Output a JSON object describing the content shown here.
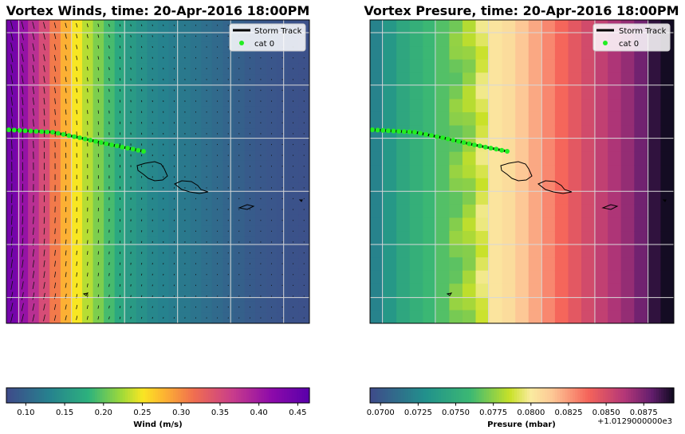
{
  "chart_data": [
    {
      "type": "heatmap",
      "title": "Vortex Winds, time: 20-Apr-2016 18:00PM",
      "colormap": "plasma-like",
      "colorbar": {
        "label": "Wind (m/s)",
        "range": [
          0.075,
          0.465
        ],
        "ticks": [
          0.1,
          0.15,
          0.2,
          0.25,
          0.3,
          0.35,
          0.4,
          0.45
        ],
        "tick_labels": [
          "0.10",
          "0.15",
          "0.20",
          "0.25",
          "0.30",
          "0.35",
          "0.40",
          "0.45"
        ]
      },
      "legend": {
        "placement": "top-right",
        "entries": [
          "Storm Track",
          "cat 0"
        ]
      },
      "grid": true,
      "field_profile_by_column": [
        0.44,
        0.41,
        0.38,
        0.35,
        0.31,
        0.28,
        0.25,
        0.23,
        0.21,
        0.19,
        0.17,
        0.155,
        0.145,
        0.135,
        0.13,
        0.125,
        0.12,
        0.115,
        0.11,
        0.105,
        0.1,
        0.095,
        0.09,
        0.087,
        0.085,
        0.083,
        0.081,
        0.08
      ],
      "wind_vectors": true
    },
    {
      "type": "heatmap",
      "title": "Vortex Presure, time: 20-Apr-2016 18:00PM",
      "colormap": "magma-like",
      "colorbar": {
        "label": "Presure (mbar)",
        "offset_text": "+1.0129000000e3",
        "range": [
          0.0693,
          0.0895
        ],
        "ticks": [
          0.07,
          0.0725,
          0.075,
          0.0775,
          0.08,
          0.0825,
          0.085,
          0.0875
        ],
        "tick_labels": [
          "0.0700",
          "0.0725",
          "0.0750",
          "0.0775",
          "0.0800",
          "0.0825",
          "0.0850",
          "0.0875"
        ]
      },
      "legend": {
        "placement": "top-right",
        "entries": [
          "Storm Track",
          "cat 0"
        ]
      },
      "grid": true,
      "field_profile_by_column": [
        0.0722,
        0.0735,
        0.0745,
        0.0752,
        0.0758,
        0.0764,
        0.0771,
        0.0778,
        0.0792,
        0.0803,
        0.0806,
        0.0814,
        0.0822,
        0.083,
        0.0838,
        0.0845,
        0.0852,
        0.0858,
        0.0864,
        0.087,
        0.0878,
        0.089,
        0.0896
      ]
    }
  ],
  "legend": {
    "track_label": "Storm Track",
    "point_label": "cat 0"
  },
  "titles": {
    "left": "Vortex Winds, time: 20-Apr-2016 18:00PM",
    "right": "Vortex Presure, time: 20-Apr-2016 18:00PM"
  },
  "colorbars": {
    "left_label": "Wind (m/s)",
    "right_label": "Presure (mbar)",
    "right_offset": "+1.0129000000e3"
  },
  "colors": {
    "track_points": "#22ee22",
    "track_line": "#000000",
    "grid": "#d8d8d8"
  }
}
